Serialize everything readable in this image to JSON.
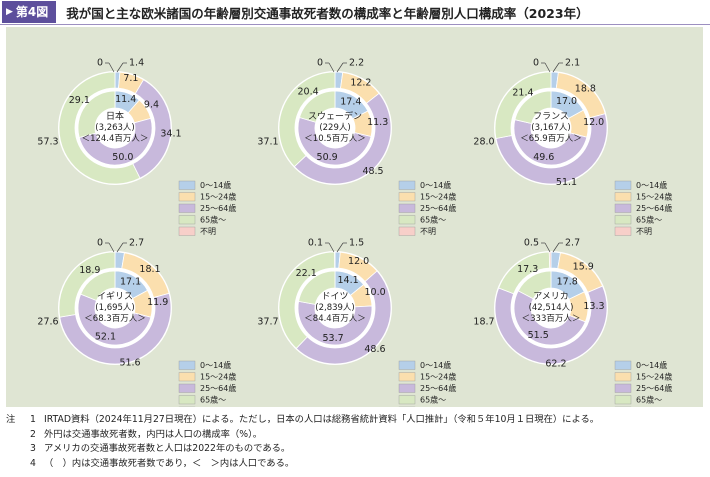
{
  "figure_label": "第4図",
  "title": "我が国と主な欧米諸国の年齢層別交通事故死者数の構成率と年齢層別人口構成率（2023年）",
  "colors": {
    "age_0_14": "#b5cfe9",
    "age_15_24": "#fbdfae",
    "age_25_64": "#c8b9dc",
    "age_65_plus": "#d8e8c2",
    "unknown": "#f7cfc9",
    "panel_bg": "#dfe5d3",
    "header": "#5d4f9c"
  },
  "legend_labels": [
    "0～14歳",
    "15～24歳",
    "25～64歳",
    "65歳～",
    "不明"
  ],
  "chart_data": [
    {
      "type": "pie",
      "name_lines": [
        "日本",
        "(3,263人)",
        "＜124.4百万人＞"
      ],
      "outer": {
        "values": [
          1.4,
          7.1,
          34.1,
          57.3,
          0
        ],
        "labels": [
          "1.4",
          "7.1",
          "34.1",
          "57.3",
          "0"
        ]
      },
      "inner": {
        "values": [
          11.4,
          9.4,
          50.0,
          29.1
        ],
        "labels": [
          "11.4",
          "9.4",
          "50.0",
          "29.1"
        ]
      }
    },
    {
      "type": "pie",
      "name_lines": [
        "スウェーデン",
        "(229人)",
        "＜10.5百万人＞"
      ],
      "outer": {
        "values": [
          2.2,
          12.2,
          48.5,
          37.1,
          0
        ],
        "labels": [
          "2.2",
          "12.2",
          "48.5",
          "37.1",
          "0"
        ]
      },
      "inner": {
        "values": [
          17.4,
          11.3,
          50.9,
          20.4
        ],
        "labels": [
          "17.4",
          "11.3",
          "50.9",
          "20.4"
        ]
      }
    },
    {
      "type": "pie",
      "name_lines": [
        "フランス",
        "(3,167人)",
        "＜65.9百万人＞"
      ],
      "outer": {
        "values": [
          2.1,
          18.8,
          51.1,
          28.0,
          0
        ],
        "labels": [
          "2.1",
          "18.8",
          "51.1",
          "28.0",
          "0"
        ]
      },
      "inner": {
        "values": [
          17.0,
          12.0,
          49.6,
          21.4
        ],
        "labels": [
          "17.0",
          "12.0",
          "49.6",
          "21.4"
        ]
      }
    },
    {
      "type": "pie",
      "name_lines": [
        "イギリス",
        "(1,695人)",
        "＜68.3百万人＞"
      ],
      "outer": {
        "values": [
          2.7,
          18.1,
          51.6,
          27.6,
          0
        ],
        "labels": [
          "2.7",
          "18.1",
          "51.6",
          "27.6",
          "0"
        ]
      },
      "inner": {
        "values": [
          17.1,
          11.9,
          52.1,
          18.9
        ],
        "labels": [
          "17.1",
          "11.9",
          "52.1",
          "18.9"
        ]
      }
    },
    {
      "type": "pie",
      "name_lines": [
        "ドイツ",
        "(2,839人)",
        "＜84.4百万人＞"
      ],
      "outer": {
        "values": [
          1.5,
          12.0,
          48.6,
          37.7,
          0.1
        ],
        "labels": [
          "1.5",
          "12.0",
          "48.6",
          "37.7",
          "0.1"
        ]
      },
      "inner": {
        "values": [
          14.1,
          10.0,
          53.7,
          22.1
        ],
        "labels": [
          "14.1",
          "10.0",
          "53.7",
          "22.1"
        ]
      }
    },
    {
      "type": "pie",
      "name_lines": [
        "アメリカ",
        "(42,514人)",
        "＜333百万人＞"
      ],
      "outer": {
        "values": [
          2.7,
          15.9,
          62.2,
          18.7,
          0.5
        ],
        "labels": [
          "2.7",
          "15.9",
          "62.2",
          "18.7",
          "0.5"
        ]
      },
      "inner": {
        "values": [
          17.8,
          13.3,
          51.5,
          17.3
        ],
        "labels": [
          "17.8",
          "13.3",
          "51.5",
          "17.3"
        ]
      }
    }
  ],
  "notes": [
    {
      "prefix": "注",
      "num": "1",
      "text": "IRTAD資料（2024年11月27日現在）による。ただし，日本の人口は総務省統計資料「人口推計」（令和５年10月１日現在）による。"
    },
    {
      "prefix": "",
      "num": "2",
      "text": "外円は交通事故死者数，内円は人口の構成率（%）。"
    },
    {
      "prefix": "",
      "num": "3",
      "text": "アメリカの交通事故死者数と人口は2022年のものである。"
    },
    {
      "prefix": "",
      "num": "4",
      "text": "（　）内は交通事故死者数であり，＜　＞内は人口である。"
    }
  ]
}
